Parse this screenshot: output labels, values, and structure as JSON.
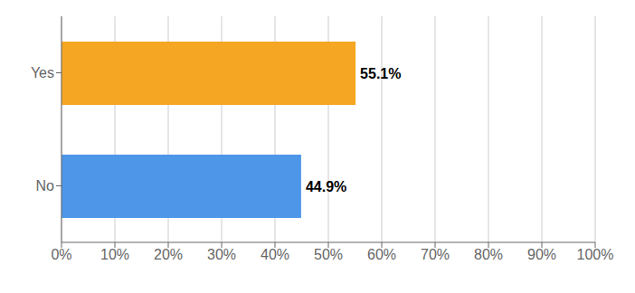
{
  "chart_data": {
    "type": "bar",
    "orientation": "horizontal",
    "categories": [
      "No",
      "Yes"
    ],
    "values": [
      44.9,
      55.1
    ],
    "value_labels": [
      "44.9%",
      "55.1%"
    ],
    "data_labels": true,
    "colors": [
      "#4d96e8",
      "#f5a623"
    ],
    "xlim": [
      0,
      100
    ],
    "xticks": [
      {
        "value": 0,
        "label": "0%"
      },
      {
        "value": 10,
        "label": "10%"
      },
      {
        "value": 20,
        "label": "20%"
      },
      {
        "value": 30,
        "label": "30%"
      },
      {
        "value": 40,
        "label": "40%"
      },
      {
        "value": 50,
        "label": "50%"
      },
      {
        "value": 60,
        "label": "60%"
      },
      {
        "value": 70,
        "label": "70%"
      },
      {
        "value": 80,
        "label": "80%"
      },
      {
        "value": 90,
        "label": "90%"
      },
      {
        "value": 100,
        "label": "100%"
      }
    ],
    "grid": true
  }
}
